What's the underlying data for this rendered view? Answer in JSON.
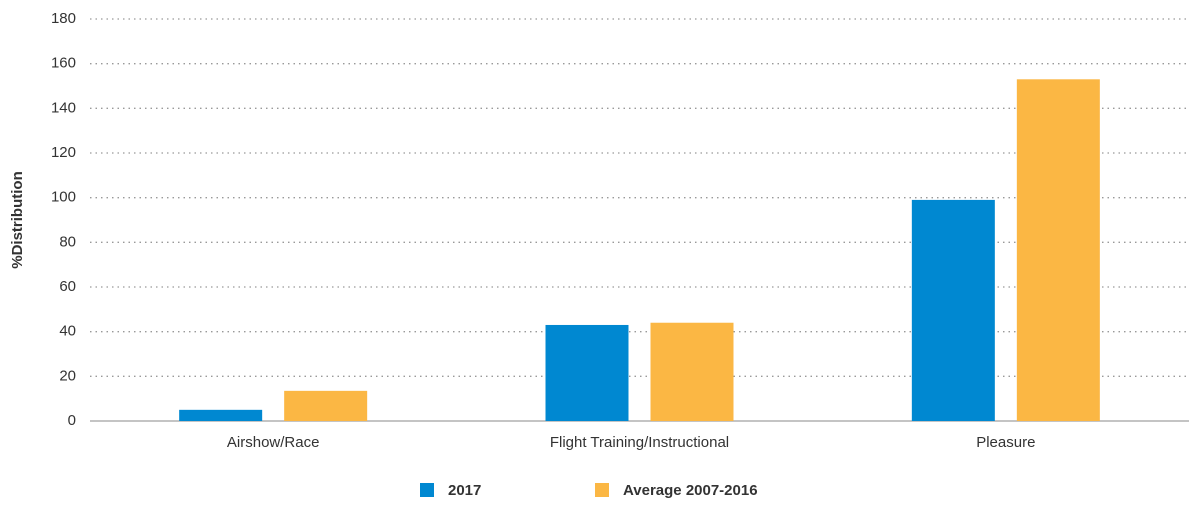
{
  "chart_data": {
    "type": "bar",
    "y_label": "%Distribution",
    "categories": [
      "Airshow/Race",
      "Flight Training/Instructional",
      "Pleasure"
    ],
    "series": [
      {
        "name": "2017",
        "color": "#0088d1",
        "values": [
          5,
          43,
          99
        ]
      },
      {
        "name": "Average 2007-2016",
        "color": "#fbb744",
        "values": [
          13.5,
          44,
          153
        ]
      }
    ],
    "ylim": [
      0,
      180
    ],
    "yticks": [
      0,
      20,
      40,
      60,
      80,
      100,
      120,
      140,
      160,
      180
    ],
    "grid": true,
    "legend": "bottom"
  }
}
